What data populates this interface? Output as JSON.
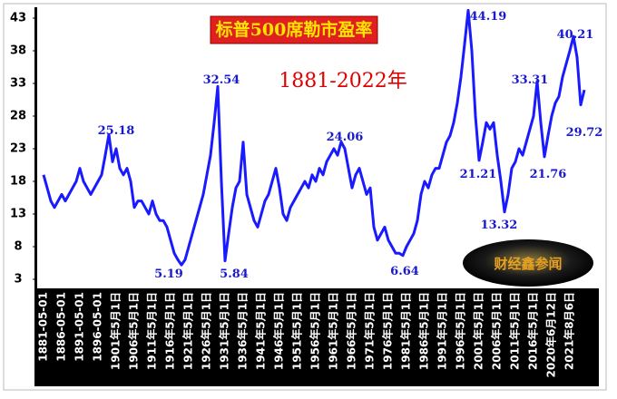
{
  "chart_data": {
    "type": "line",
    "title": "标普500席勒市盈率",
    "subtitle": "1881-2022年",
    "logo_text": "财经鑫参闻",
    "categories": [
      "1881-05-01",
      null,
      null,
      null,
      null,
      "1886-05-01",
      null,
      null,
      null,
      null,
      "1891-05-01",
      null,
      null,
      null,
      null,
      "1896-05-01",
      null,
      null,
      null,
      null,
      "1901年5月1日",
      null,
      null,
      null,
      null,
      "1906年5月1日",
      null,
      null,
      null,
      null,
      "1911年5月1日",
      null,
      null,
      null,
      null,
      "1916年5月1日",
      null,
      null,
      null,
      null,
      "1921年5月1日",
      null,
      null,
      null,
      null,
      "1926年5月1日",
      null,
      null,
      null,
      null,
      "1931年5月1日",
      null,
      null,
      null,
      null,
      "1936年5月1日",
      null,
      null,
      null,
      null,
      "1941年5月1日",
      null,
      null,
      null,
      null,
      "1946年5月1日",
      null,
      null,
      null,
      null,
      "1951年5月1日",
      null,
      null,
      null,
      null,
      "1956年5月1日",
      null,
      null,
      null,
      null,
      "1961年5月1日",
      null,
      null,
      null,
      null,
      "1966年5月1日",
      null,
      null,
      null,
      null,
      "1971年5月1日",
      null,
      null,
      null,
      null,
      "1976年5月1日",
      null,
      null,
      null,
      null,
      "1981年5月1日",
      null,
      null,
      null,
      null,
      "1986年5月1日",
      null,
      null,
      null,
      null,
      "1991年5月1日",
      null,
      null,
      null,
      null,
      "1996年5月1日",
      null,
      null,
      null,
      null,
      "2001年5月1日",
      null,
      null,
      null,
      null,
      "2006年5月1日",
      null,
      null,
      null,
      null,
      "2011年5月1日",
      null,
      null,
      null,
      null,
      "2016年5月1日",
      null,
      null,
      null,
      null,
      "2020年6月12日",
      null,
      null,
      null,
      null,
      "2021年8月6日",
      null,
      null,
      null,
      null
    ],
    "values": [
      19,
      17,
      15,
      14,
      15,
      16,
      15,
      16,
      17,
      18,
      20,
      18,
      17,
      16,
      17,
      18,
      19,
      22,
      25.18,
      21,
      23,
      20,
      19,
      20,
      18,
      14,
      15,
      15,
      14,
      13,
      15,
      13,
      12,
      12,
      11,
      9,
      7,
      6,
      5.19,
      6,
      8,
      10,
      12,
      14,
      16,
      19,
      22,
      27,
      32.54,
      18,
      5.84,
      10,
      14,
      17,
      18,
      24,
      16,
      14,
      12,
      11,
      13,
      15,
      16,
      18,
      20,
      17,
      13,
      12,
      14,
      15,
      16,
      17,
      18,
      17,
      19,
      18,
      20,
      19,
      21,
      22,
      23,
      22,
      24.06,
      23,
      20,
      17,
      19,
      20,
      18,
      16,
      17,
      11,
      9,
      10,
      11,
      9,
      8,
      7,
      7,
      6.64,
      8,
      9,
      10,
      12,
      16,
      18,
      17,
      19,
      20,
      20,
      22,
      24,
      25,
      27,
      30,
      34,
      39,
      44.19,
      38,
      28,
      21.21,
      24,
      27,
      26,
      27,
      22,
      18,
      13.32,
      16,
      20,
      21,
      23,
      22,
      24,
      26,
      28,
      33.31,
      27,
      21.76,
      25,
      28,
      30,
      31,
      34,
      36,
      38,
      40.21,
      37,
      29.72,
      32
    ],
    "color": "#1a1aff",
    "ylim": [
      3,
      44.5
    ],
    "yticks": [
      3,
      8,
      13,
      18,
      23,
      28,
      33,
      38,
      43
    ],
    "grid": false
  }
}
